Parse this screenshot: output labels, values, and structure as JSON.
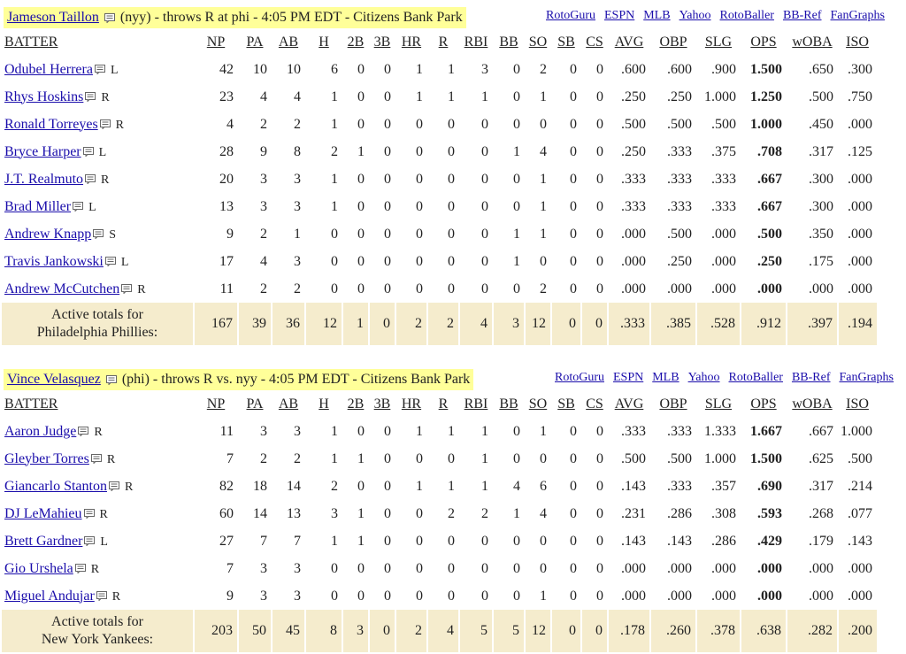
{
  "columns": [
    "BATTER",
    "NP",
    "PA",
    "AB",
    "H",
    "2B",
    "3B",
    "HR",
    "R",
    "RBI",
    "BB",
    "SO",
    "SB",
    "CS",
    "AVG",
    "OBP",
    "SLG",
    "OPS",
    "wOBA",
    "ISO"
  ],
  "links": [
    "RotoGuru",
    "ESPN",
    "MLB",
    "Yahoo",
    "RotoBaller",
    "BB-Ref",
    "FanGraphs"
  ],
  "games": [
    {
      "pitcher": "Jameson Taillon",
      "info": "(nyy) - throws R at phi - 4:05 PM EDT - Citizens Bank Park",
      "batters": [
        {
          "name": "Odubel Herrera",
          "hand": "L",
          "stats": [
            "42",
            "10",
            "10",
            "6",
            "0",
            "0",
            "1",
            "1",
            "3",
            "0",
            "2",
            "0",
            "0",
            ".600",
            ".600",
            ".900",
            "1.500",
            ".650",
            ".300"
          ]
        },
        {
          "name": "Rhys Hoskins",
          "hand": "R",
          "stats": [
            "23",
            "4",
            "4",
            "1",
            "0",
            "0",
            "1",
            "1",
            "1",
            "0",
            "1",
            "0",
            "0",
            ".250",
            ".250",
            "1.000",
            "1.250",
            ".500",
            ".750"
          ]
        },
        {
          "name": "Ronald Torreyes",
          "hand": "R",
          "stats": [
            "4",
            "2",
            "2",
            "1",
            "0",
            "0",
            "0",
            "0",
            "0",
            "0",
            "0",
            "0",
            "0",
            ".500",
            ".500",
            ".500",
            "1.000",
            ".450",
            ".000"
          ]
        },
        {
          "name": "Bryce Harper",
          "hand": "L",
          "stats": [
            "28",
            "9",
            "8",
            "2",
            "1",
            "0",
            "0",
            "0",
            "0",
            "1",
            "4",
            "0",
            "0",
            ".250",
            ".333",
            ".375",
            ".708",
            ".317",
            ".125"
          ]
        },
        {
          "name": "J.T. Realmuto",
          "hand": "R",
          "stats": [
            "20",
            "3",
            "3",
            "1",
            "0",
            "0",
            "0",
            "0",
            "0",
            "0",
            "1",
            "0",
            "0",
            ".333",
            ".333",
            ".333",
            ".667",
            ".300",
            ".000"
          ]
        },
        {
          "name": "Brad Miller",
          "hand": "L",
          "stats": [
            "13",
            "3",
            "3",
            "1",
            "0",
            "0",
            "0",
            "0",
            "0",
            "0",
            "1",
            "0",
            "0",
            ".333",
            ".333",
            ".333",
            ".667",
            ".300",
            ".000"
          ]
        },
        {
          "name": "Andrew Knapp",
          "hand": "S",
          "stats": [
            "9",
            "2",
            "1",
            "0",
            "0",
            "0",
            "0",
            "0",
            "0",
            "1",
            "1",
            "0",
            "0",
            ".000",
            ".500",
            ".000",
            ".500",
            ".350",
            ".000"
          ]
        },
        {
          "name": "Travis Jankowski",
          "hand": "L",
          "stats": [
            "17",
            "4",
            "3",
            "0",
            "0",
            "0",
            "0",
            "0",
            "0",
            "1",
            "0",
            "0",
            "0",
            ".000",
            ".250",
            ".000",
            ".250",
            ".175",
            ".000"
          ]
        },
        {
          "name": "Andrew McCutchen",
          "hand": "R",
          "stats": [
            "11",
            "2",
            "2",
            "0",
            "0",
            "0",
            "0",
            "0",
            "0",
            "0",
            "2",
            "0",
            "0",
            ".000",
            ".000",
            ".000",
            ".000",
            ".000",
            ".000"
          ]
        }
      ],
      "totals": {
        "line1": "Active totals for",
        "line2": "Philadelphia Phillies:",
        "stats": [
          "167",
          "39",
          "36",
          "12",
          "1",
          "0",
          "2",
          "2",
          "4",
          "3",
          "12",
          "0",
          "0",
          ".333",
          ".385",
          ".528",
          ".912",
          ".397",
          ".194"
        ]
      }
    },
    {
      "pitcher": "Vince Velasquez",
      "info": "(phi) - throws R vs. nyy - 4:05 PM EDT - Citizens Bank Park",
      "batters": [
        {
          "name": "Aaron Judge",
          "hand": "R",
          "stats": [
            "11",
            "3",
            "3",
            "1",
            "0",
            "0",
            "1",
            "1",
            "1",
            "0",
            "1",
            "0",
            "0",
            ".333",
            ".333",
            "1.333",
            "1.667",
            ".667",
            "1.000"
          ]
        },
        {
          "name": "Gleyber Torres",
          "hand": "R",
          "stats": [
            "7",
            "2",
            "2",
            "1",
            "1",
            "0",
            "0",
            "0",
            "1",
            "0",
            "0",
            "0",
            "0",
            ".500",
            ".500",
            "1.000",
            "1.500",
            ".625",
            ".500"
          ]
        },
        {
          "name": "Giancarlo Stanton",
          "hand": "R",
          "stats": [
            "82",
            "18",
            "14",
            "2",
            "0",
            "0",
            "1",
            "1",
            "1",
            "4",
            "6",
            "0",
            "0",
            ".143",
            ".333",
            ".357",
            ".690",
            ".317",
            ".214"
          ]
        },
        {
          "name": "DJ LeMahieu",
          "hand": "R",
          "stats": [
            "60",
            "14",
            "13",
            "3",
            "1",
            "0",
            "0",
            "2",
            "2",
            "1",
            "4",
            "0",
            "0",
            ".231",
            ".286",
            ".308",
            ".593",
            ".268",
            ".077"
          ]
        },
        {
          "name": "Brett Gardner",
          "hand": "L",
          "stats": [
            "27",
            "7",
            "7",
            "1",
            "1",
            "0",
            "0",
            "0",
            "0",
            "0",
            "0",
            "0",
            "0",
            ".143",
            ".143",
            ".286",
            ".429",
            ".179",
            ".143"
          ]
        },
        {
          "name": "Gio Urshela",
          "hand": "R",
          "stats": [
            "7",
            "3",
            "3",
            "0",
            "0",
            "0",
            "0",
            "0",
            "0",
            "0",
            "0",
            "0",
            "0",
            ".000",
            ".000",
            ".000",
            ".000",
            ".000",
            ".000"
          ]
        },
        {
          "name": "Miguel Andujar",
          "hand": "R",
          "stats": [
            "9",
            "3",
            "3",
            "0",
            "0",
            "0",
            "0",
            "0",
            "0",
            "0",
            "1",
            "0",
            "0",
            ".000",
            ".000",
            ".000",
            ".000",
            ".000",
            ".000"
          ]
        }
      ],
      "totals": {
        "line1": "Active totals for",
        "line2": "New York Yankees:",
        "stats": [
          "203",
          "50",
          "45",
          "8",
          "3",
          "0",
          "2",
          "4",
          "5",
          "5",
          "12",
          "0",
          "0",
          ".178",
          ".260",
          ".378",
          ".638",
          ".282",
          ".200"
        ]
      }
    }
  ]
}
